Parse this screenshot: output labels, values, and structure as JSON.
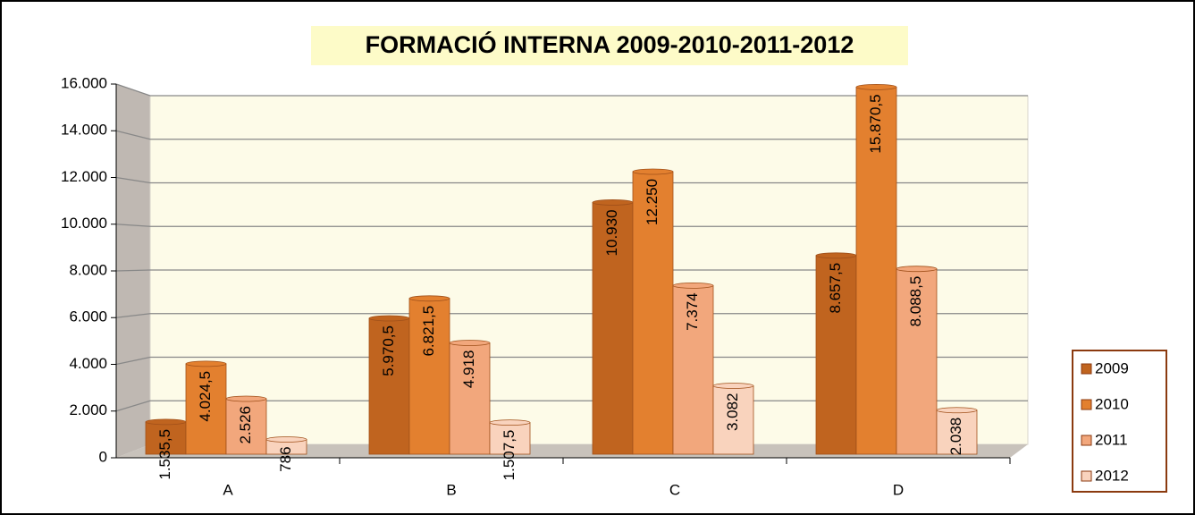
{
  "chart_data": {
    "type": "bar",
    "title": "FORMACIÓ INTERNA 2009-2010-2011-2012",
    "categories": [
      "A",
      "B",
      "C",
      "D"
    ],
    "series": [
      {
        "name": "2009",
        "color": "#c0641f",
        "values": [
          1535.5,
          5970.5,
          10930,
          8657.5
        ],
        "value_labels": [
          "1.535,5",
          "5.970,5",
          "10.930",
          "8.657,5"
        ]
      },
      {
        "name": "2010",
        "color": "#e3802f",
        "values": [
          4024.5,
          6821.5,
          12250,
          15870.5
        ],
        "value_labels": [
          "4.024,5",
          "6.821,5",
          "12.250",
          "15.870,5"
        ]
      },
      {
        "name": "2011",
        "color": "#f2a77c",
        "values": [
          2526,
          4918,
          7374,
          8088.5
        ],
        "value_labels": [
          "2.526",
          "4.918",
          "7.374",
          "8.088,5"
        ]
      },
      {
        "name": "2012",
        "color": "#f9d3bd",
        "values": [
          786,
          1507.5,
          3082,
          2038
        ],
        "value_labels": [
          "786",
          "1.507,5",
          "3.082",
          "2.038"
        ]
      }
    ],
    "ylim": [
      0,
      16000
    ],
    "yticks": [
      0,
      {
        "value": 2000,
        "label": "2.000"
      },
      {
        "value": 4000,
        "label": "4.000"
      },
      {
        "value": 6000,
        "label": "6.000"
      },
      {
        "value": 8000,
        "label": "8.000"
      },
      {
        "value": 10000,
        "label": "10.000"
      },
      {
        "value": 12000,
        "label": "12.000"
      },
      {
        "value": 14000,
        "label": "14.000"
      },
      {
        "value": 16000,
        "label": "16.000"
      }
    ],
    "grid": true,
    "legend": "right"
  }
}
